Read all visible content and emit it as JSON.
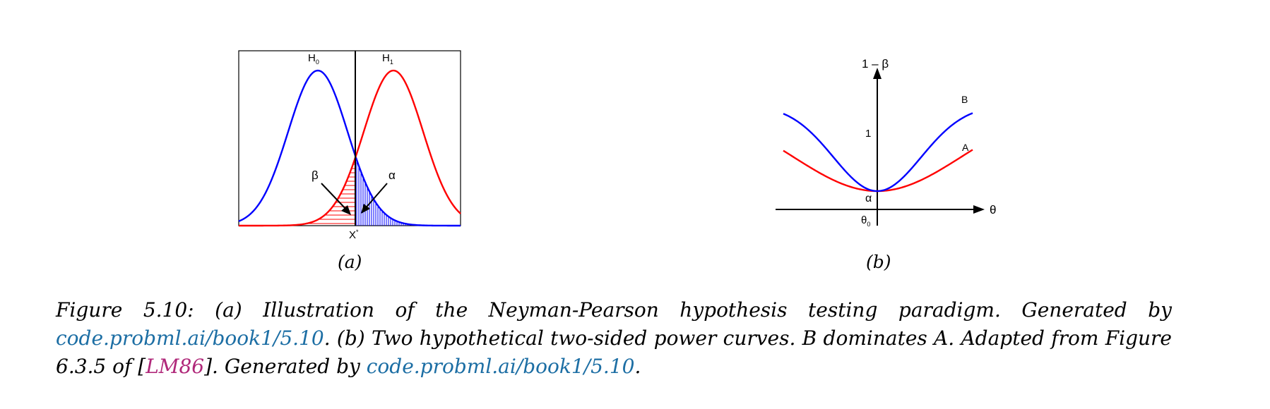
{
  "panel_a": {
    "label": "(a)",
    "h0_label": "H",
    "h0_sub": "0",
    "h1_label": "H",
    "h1_sub": "1",
    "beta_label": "β",
    "alpha_label": "α",
    "threshold_label": "X*",
    "colors": {
      "h0": "#0000ff",
      "h1": "#ff0000"
    }
  },
  "panel_b": {
    "label": "(b)",
    "y_axis_label": "1 – β",
    "y_tick": "1",
    "alpha_label": "α",
    "x_axis_label": "θ",
    "theta0_label": "θ",
    "theta0_sub": "0",
    "curve_b_label": "B",
    "curve_a_label": "A",
    "colors": {
      "A": "#ff0000",
      "B": "#0000ff"
    }
  },
  "caption": {
    "figure_number": "Figure 5.10:",
    "part_a": "(a) Illustration of the Neyman-Pearson hypothesis testing paradigm. Generated by",
    "link1": "code.probml.ai/book1/5.10",
    "part_b": ". (b) Two hypothetical two-sided power curves. B dominates A. Adapted from Figure 6.3.5 of [",
    "citation": "LM86",
    "part_c": "]. Generated by",
    "link2": "code.probml.ai/book1/5.10",
    "end": "."
  }
}
